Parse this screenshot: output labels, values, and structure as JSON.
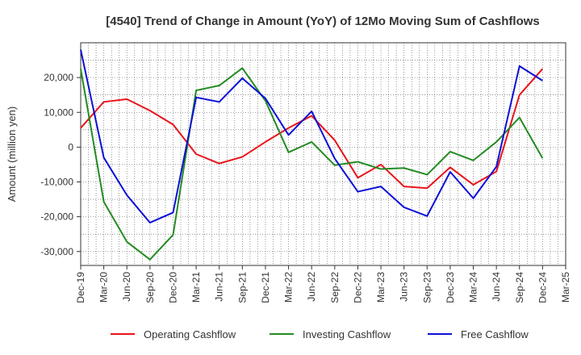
{
  "chart_data": {
    "type": "line",
    "title": "[4540]  Trend of Change in Amount (YoY) of 12Mo Moving Sum of Cashflows",
    "xlabel": "",
    "ylabel": "Amount (million yen)",
    "ylim": [
      -34000,
      30000
    ],
    "yticks": [
      20000,
      10000,
      0,
      -10000,
      -20000,
      -30000
    ],
    "ytick_labels": [
      "20,000",
      "10,000",
      "0",
      "-10,000",
      "-20,000",
      "-30,000"
    ],
    "grid": true,
    "legend_position": "bottom",
    "categories": [
      "Dec-19",
      "Mar-20",
      "Jun-20",
      "Sep-20",
      "Dec-20",
      "Mar-21",
      "Jun-21",
      "Sep-21",
      "Dec-21",
      "Mar-22",
      "Jun-22",
      "Sep-22",
      "Dec-22",
      "Mar-23",
      "Jun-23",
      "Sep-23",
      "Dec-23",
      "Mar-24",
      "Jun-24",
      "Sep-24",
      "Dec-24",
      "Mar-25"
    ],
    "series": [
      {
        "name": "Operating Cashflow",
        "color": "#e8141b",
        "values": [
          5500,
          13000,
          13800,
          10500,
          6500,
          -2000,
          -4700,
          -2800,
          1500,
          5500,
          9000,
          2000,
          -8800,
          -5000,
          -11300,
          -11800,
          -5800,
          -10800,
          -7000,
          15000,
          22500,
          null
        ]
      },
      {
        "name": "Investing Cashflow",
        "color": "#238b23",
        "values": [
          22500,
          -15700,
          -27200,
          -32300,
          -25200,
          16300,
          17700,
          22700,
          13300,
          -1500,
          1500,
          -5200,
          -4200,
          -6300,
          -6000,
          -7900,
          -1300,
          -3800,
          1500,
          8500,
          -3200,
          null
        ]
      },
      {
        "name": "Free Cashflow",
        "color": "#0c10d6",
        "values": [
          28000,
          -3000,
          -13800,
          -21700,
          -18800,
          14300,
          13000,
          19800,
          14000,
          3500,
          10300,
          -3300,
          -12800,
          -11300,
          -17300,
          -19800,
          -7100,
          -14700,
          -5600,
          23300,
          19100,
          null
        ]
      }
    ]
  }
}
